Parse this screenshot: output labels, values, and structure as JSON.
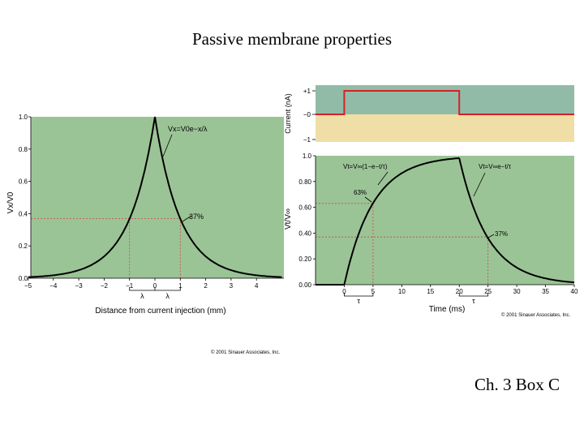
{
  "slide": {
    "title": "Passive membrane properties",
    "caption": "Ch. 3 Box C"
  },
  "colors": {
    "plot_green": "#9bc496",
    "current_pos_bg": "#91bba7",
    "current_neg_bg": "#efdfa6",
    "trace_red": "#d81f26",
    "curve": "#000000",
    "guide_red": "#c44"
  },
  "copyright": {
    "left": "© 2001 Sinauer Associates, Inc.",
    "right": "© 2001 Sinauer Associates, Inc."
  },
  "chart_data": [
    {
      "type": "line",
      "name": "spatial-decay",
      "xlabel": "Distance from current injection (mm)",
      "ylabel": "Vx/V0",
      "xlim": [
        -5,
        5
      ],
      "ylim": [
        0,
        1.0
      ],
      "xticks": [
        -5,
        -4,
        -3,
        -2,
        -1,
        0,
        1,
        2,
        3,
        4
      ],
      "yticks": [
        0.0,
        0.2,
        0.4,
        0.6,
        0.8,
        1.0
      ],
      "xtick_labels": [
        "−5",
        "−4",
        "−3",
        "−2",
        "−1",
        "0",
        "1",
        "2",
        "3",
        "4"
      ],
      "ytick_labels": [
        "0.0",
        "0.2",
        "0.4",
        "0.6",
        "0.8",
        "1.0"
      ],
      "lambda_mm": 1,
      "equation": "Vx=V0e−x/λ",
      "annotation": {
        "text": "37%",
        "x": 1,
        "y": 0.37
      },
      "lambda_label": "λ",
      "series": [
        {
          "name": "Vx/V0",
          "x": [
            -5,
            -4,
            -3,
            -2.5,
            -2,
            -1.5,
            -1,
            -0.75,
            -0.5,
            -0.3,
            -0.15,
            0,
            0.15,
            0.3,
            0.5,
            0.75,
            1,
            1.5,
            2,
            2.5,
            3,
            4,
            5
          ],
          "y": [
            0.007,
            0.018,
            0.05,
            0.082,
            0.135,
            0.223,
            0.368,
            0.472,
            0.607,
            0.741,
            0.861,
            1.0,
            0.861,
            0.741,
            0.607,
            0.472,
            0.368,
            0.223,
            0.135,
            0.082,
            0.05,
            0.018,
            0.007
          ]
        }
      ]
    },
    {
      "type": "line",
      "name": "current-step",
      "xlabel": "",
      "ylabel": "Current (nA)",
      "xlim": [
        -5,
        40
      ],
      "ylim": [
        -1,
        1
      ],
      "ytick_labels": [
        "+1",
        "−0",
        "−1"
      ],
      "yticks": [
        1,
        0,
        -1
      ],
      "series": [
        {
          "name": "Current",
          "x": [
            -5,
            0,
            0,
            20,
            20,
            40
          ],
          "y": [
            0,
            0,
            1,
            1,
            0,
            0
          ]
        }
      ]
    },
    {
      "type": "line",
      "name": "temporal-charging",
      "xlabel": "Time (ms)",
      "ylabel": "Vt/V∞",
      "xlim": [
        -5,
        40
      ],
      "ylim": [
        0,
        1.0
      ],
      "xticks": [
        0,
        5,
        10,
        15,
        20,
        25,
        30,
        35,
        40
      ],
      "yticks": [
        0.0,
        0.2,
        0.4,
        0.6,
        0.8,
        1.0
      ],
      "xtick_labels": [
        "0",
        "5",
        "10",
        "15",
        "20",
        "25",
        "30",
        "35",
        "40"
      ],
      "ytick_labels": [
        "0.00",
        "0.20",
        "0.40",
        "0.60",
        "0.80",
        "1.0"
      ],
      "tau_ms": 5,
      "equation_rise": "Vt=V∞(1−e−t/τ)",
      "equation_fall": "Vt=V∞e−t/τ",
      "annotations": [
        {
          "text": "63%",
          "x": 5,
          "y": 0.63
        },
        {
          "text": "37%",
          "x": 25,
          "y": 0.37
        }
      ],
      "tau_label": "τ",
      "series": [
        {
          "name": "rise",
          "x": [
            0,
            1,
            2,
            3,
            4,
            5,
            6,
            7,
            8,
            10,
            12,
            14,
            16,
            18,
            20
          ],
          "y": [
            0,
            0.181,
            0.33,
            0.451,
            0.551,
            0.632,
            0.699,
            0.753,
            0.798,
            0.865,
            0.909,
            0.939,
            0.959,
            0.973,
            0.982
          ]
        },
        {
          "name": "decay",
          "x": [
            20,
            21,
            22,
            23,
            24,
            25,
            26,
            28,
            30,
            32,
            35,
            38,
            40
          ],
          "y": [
            0.982,
            0.804,
            0.658,
            0.539,
            0.441,
            0.361,
            0.296,
            0.198,
            0.133,
            0.089,
            0.049,
            0.027,
            0.018
          ]
        }
      ]
    }
  ]
}
